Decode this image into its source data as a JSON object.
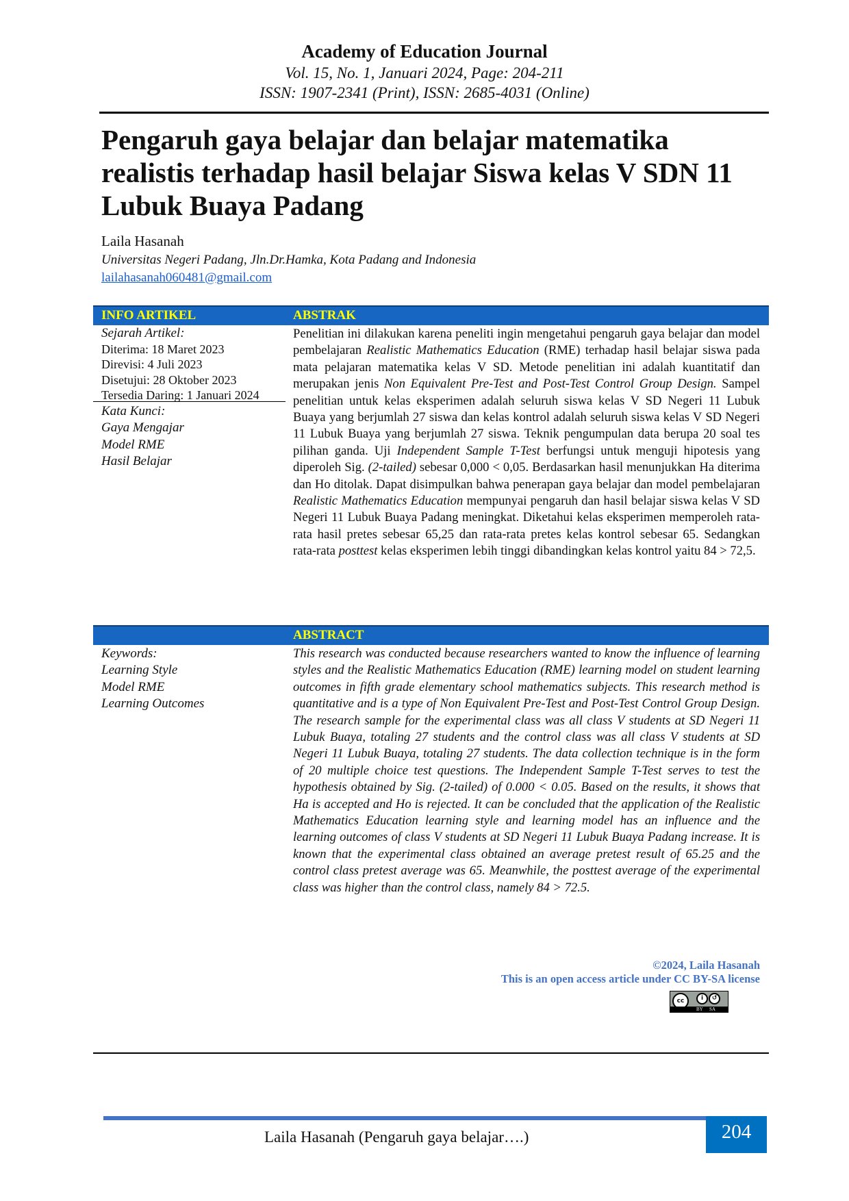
{
  "journal": {
    "name": "Academy of Education Journal",
    "volume": "Vol. 15, No. 1, Januari 2024, Page: 204-211",
    "issn": "ISSN: 1907-2341 (Print), ISSN: 2685-4031 (Online)"
  },
  "article": {
    "title": "Pengaruh gaya belajar dan belajar matematika realistis terhadap hasil belajar Siswa kelas V SDN 11 Lubuk Buaya Padang",
    "author": "Laila Hasanah",
    "affiliation": "Universitas Negeri Padang, Jln.Dr.Hamka, Kota Padang and Indonesia",
    "email": "lailahasanah060481@gmail.com"
  },
  "info": {
    "header": "INFO ARTIKEL",
    "history_label": "Sejarah Artikel:",
    "history": [
      "Diterima: 18 Maret 2023",
      "Direvisi: 4 Juli 2023",
      "Disetujui: 28 Oktober 2023",
      "Tersedia Daring: 1 Januari 2024"
    ],
    "kata_kunci_label": "Kata Kunci:",
    "kata_kunci": [
      "Gaya Mengajar",
      "Model RME",
      "Hasil Belajar"
    ],
    "keywords_label": "Keywords:",
    "keywords": [
      "Learning Style",
      "Model RME",
      "Learning Outcomes"
    ]
  },
  "abstrak": {
    "header": "ABSTRAK",
    "segments": [
      {
        "t": "Penelitian ini dilakukan karena peneliti ingin mengetahui pengaruh gaya belajar dan model pembelajaran ",
        "i": false
      },
      {
        "t": "Realistic Mathematics Education",
        "i": true
      },
      {
        "t": " (RME) terhadap hasil belajar siswa pada mata pelajaran matematika kelas V SD. Metode penelitian ini adalah kuantitatif dan merupakan jenis ",
        "i": false
      },
      {
        "t": "Non Equivalent Pre-Test and Post-Test Control Group Design.",
        "i": true
      },
      {
        "t": " Sampel penelitian untuk kelas eksperimen adalah seluruh siswa kelas V SD Negeri 11 Lubuk Buaya yang berjumlah 27 siswa dan kelas kontrol adalah seluruh siswa kelas V SD Negeri 11 Lubuk Buaya yang berjumlah 27 siswa. Teknik pengumpulan data berupa 20 soal tes pilihan ganda. Uji ",
        "i": false
      },
      {
        "t": "Independent Sample T-Test",
        "i": true
      },
      {
        "t": " berfungsi untuk menguji hipotesis yang diperoleh Sig. ",
        "i": false
      },
      {
        "t": "(2-tailed)",
        "i": true
      },
      {
        "t": " sebesar 0,000 < 0,05. Berdasarkan hasil menunjukkan Ha diterima dan Ho ditolak. Dapat disimpulkan bahwa penerapan gaya belajar dan model pembelajaran ",
        "i": false
      },
      {
        "t": "Realistic Mathematics Education",
        "i": true
      },
      {
        "t": " mempunyai pengaruh dan hasil belajar siswa kelas V SD Negeri 11 Lubuk Buaya Padang meningkat. Diketahui kelas eksperimen memperoleh rata-rata hasil pretes sebesar 65,25 dan rata-rata pretes kelas kontrol sebesar 65. Sedangkan rata-rata ",
        "i": false
      },
      {
        "t": "posttest",
        "i": true
      },
      {
        "t": " kelas eksperimen lebih tinggi dibandingkan kelas kontrol yaitu 84 > 72,5.",
        "i": false
      }
    ]
  },
  "abstract": {
    "header": "ABSTRACT",
    "text": "This research was conducted because researchers wanted to know the influence of learning styles and the Realistic Mathematics Education (RME) learning model on student learning outcomes in fifth grade elementary school mathematics subjects. This research method is quantitative and is a type of Non Equivalent Pre-Test and Post-Test Control Group Design. The research sample for the experimental class was all class V students at SD Negeri 11 Lubuk Buaya, totaling 27 students and the control class was all class V students at SD Negeri 11 Lubuk Buaya, totaling 27 students. The data collection technique is in the form of 20 multiple choice test questions. The Independent Sample T-Test serves to test the hypothesis obtained by Sig. (2-tailed) of 0.000 < 0.05. Based on the results, it shows that Ha is accepted and Ho is rejected. It can be concluded that the application of the Realistic Mathematics Education learning style and learning model has an influence and the learning outcomes of class V students at SD Negeri 11 Lubuk Buaya Padang increase. It is known that the experimental class obtained an average pretest result of 65.25 and the control class pretest average was 65. Meanwhile, the posttest average of the experimental class was higher than the control class, namely 84 > 72.5."
  },
  "license": {
    "copyright": "©2024, Laila Hasanah",
    "notice": "This is an open access article under CC BY-SA license",
    "badge": {
      "cc": "cc",
      "by": "BY",
      "sa": "SA"
    }
  },
  "footer": {
    "running_head": "Laila Hasanah (Pengaruh gaya belajar….)",
    "page": "204"
  },
  "colors": {
    "header_bar": "#1767c2",
    "header_text": "#ffff00",
    "license_text": "#4472c4",
    "page_box": "#0070c0",
    "link": "#1a5fd0"
  }
}
